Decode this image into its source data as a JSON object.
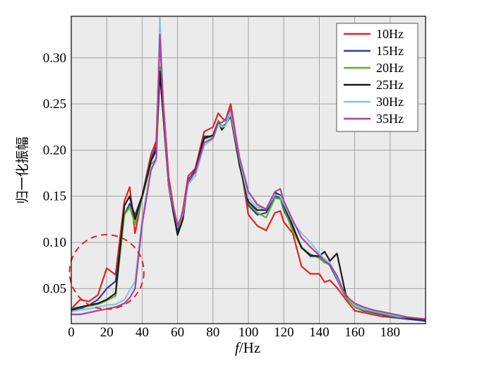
{
  "chart_data": {
    "type": "line",
    "xlabel_italic": "f",
    "xlabel_unit": "/Hz",
    "ylabel": "归一化振幅",
    "xlim": [
      0,
      200
    ],
    "ylim": [
      0.012,
      0.345
    ],
    "xticks": [
      0,
      20,
      40,
      60,
      80,
      100,
      120,
      140,
      160,
      180
    ],
    "yticks": [
      0.05,
      0.1,
      0.15,
      0.2,
      0.25,
      0.3
    ],
    "ytick_labels": [
      "0.05",
      "0.10",
      "0.15",
      "0.20",
      "0.25",
      "0.30"
    ],
    "grid": true,
    "legend_position": "top-right",
    "x": [
      0,
      5,
      10,
      15,
      20,
      25,
      30,
      33,
      36,
      40,
      45,
      48,
      50,
      52,
      55,
      60,
      63,
      66,
      70,
      75,
      80,
      83,
      85,
      87,
      90,
      95,
      100,
      105,
      110,
      115,
      118,
      120,
      125,
      130,
      135,
      140,
      143,
      146,
      150,
      155,
      160,
      165,
      170,
      175,
      180,
      185,
      190,
      195,
      200
    ],
    "series": [
      {
        "name": "10Hz",
        "color": "#e8211f",
        "values": [
          0.028,
          0.038,
          0.036,
          0.043,
          0.072,
          0.065,
          0.145,
          0.16,
          0.11,
          0.15,
          0.195,
          0.21,
          0.325,
          0.25,
          0.17,
          0.112,
          0.135,
          0.172,
          0.18,
          0.22,
          0.225,
          0.24,
          0.235,
          0.232,
          0.25,
          0.19,
          0.13,
          0.118,
          0.113,
          0.132,
          0.134,
          0.122,
          0.11,
          0.074,
          0.066,
          0.066,
          0.057,
          0.059,
          0.051,
          0.038,
          0.026,
          0.024,
          0.022,
          0.02,
          0.019,
          0.018,
          0.017,
          0.016,
          0.015
        ]
      },
      {
        "name": "15Hz",
        "color": "#2d3e9f",
        "values": [
          0.026,
          0.028,
          0.032,
          0.038,
          0.05,
          0.058,
          0.13,
          0.142,
          0.13,
          0.15,
          0.19,
          0.205,
          0.29,
          0.24,
          0.165,
          0.112,
          0.128,
          0.168,
          0.178,
          0.215,
          0.215,
          0.232,
          0.225,
          0.228,
          0.24,
          0.185,
          0.14,
          0.13,
          0.132,
          0.15,
          0.148,
          0.135,
          0.115,
          0.095,
          0.085,
          0.085,
          0.08,
          0.075,
          0.06,
          0.04,
          0.03,
          0.026,
          0.024,
          0.022,
          0.02,
          0.018,
          0.017,
          0.016,
          0.015
        ]
      },
      {
        "name": "20Hz",
        "color": "#5ab22c",
        "values": [
          0.028,
          0.03,
          0.031,
          0.033,
          0.037,
          0.042,
          0.13,
          0.138,
          0.12,
          0.148,
          0.185,
          0.19,
          0.29,
          0.238,
          0.163,
          0.116,
          0.126,
          0.165,
          0.176,
          0.212,
          0.215,
          0.232,
          0.226,
          0.228,
          0.238,
          0.183,
          0.143,
          0.132,
          0.127,
          0.148,
          0.147,
          0.138,
          0.112,
          0.095,
          0.087,
          0.083,
          0.078,
          0.076,
          0.062,
          0.04,
          0.03,
          0.027,
          0.025,
          0.023,
          0.021,
          0.019,
          0.018,
          0.017,
          0.016
        ]
      },
      {
        "name": "25Hz",
        "color": "#1a1a1a",
        "values": [
          0.027,
          0.03,
          0.032,
          0.034,
          0.038,
          0.045,
          0.14,
          0.15,
          0.125,
          0.15,
          0.188,
          0.2,
          0.285,
          0.235,
          0.16,
          0.108,
          0.125,
          0.166,
          0.177,
          0.213,
          0.216,
          0.23,
          0.222,
          0.227,
          0.237,
          0.184,
          0.144,
          0.135,
          0.135,
          0.154,
          0.151,
          0.14,
          0.118,
          0.094,
          0.086,
          0.085,
          0.09,
          0.08,
          0.088,
          0.043,
          0.032,
          0.028,
          0.026,
          0.024,
          0.022,
          0.02,
          0.018,
          0.017,
          0.016
        ]
      },
      {
        "name": "30Hz",
        "color": "#7fc9e6",
        "values": [
          0.025,
          0.027,
          0.028,
          0.03,
          0.032,
          0.033,
          0.038,
          0.048,
          0.058,
          0.125,
          0.18,
          0.188,
          0.345,
          0.245,
          0.16,
          0.118,
          0.13,
          0.163,
          0.172,
          0.205,
          0.212,
          0.228,
          0.225,
          0.226,
          0.24,
          0.19,
          0.148,
          0.138,
          0.136,
          0.152,
          0.15,
          0.142,
          0.122,
          0.11,
          0.1,
          0.088,
          0.082,
          0.078,
          0.062,
          0.042,
          0.032,
          0.028,
          0.026,
          0.024,
          0.022,
          0.02,
          0.019,
          0.018,
          0.017
        ]
      },
      {
        "name": "35Hz",
        "color": "#b03fa0",
        "values": [
          0.022,
          0.022,
          0.024,
          0.026,
          0.028,
          0.03,
          0.034,
          0.04,
          0.05,
          0.12,
          0.178,
          0.192,
          0.325,
          0.244,
          0.162,
          0.118,
          0.132,
          0.167,
          0.176,
          0.208,
          0.213,
          0.23,
          0.23,
          0.233,
          0.245,
          0.192,
          0.155,
          0.141,
          0.136,
          0.155,
          0.158,
          0.145,
          0.124,
          0.105,
          0.095,
          0.086,
          0.08,
          0.076,
          0.064,
          0.042,
          0.034,
          0.03,
          0.027,
          0.025,
          0.023,
          0.021,
          0.019,
          0.018,
          0.017
        ]
      }
    ],
    "annotation": {
      "shape": "dashed-circle",
      "color": "#e8211f",
      "center": [
        20,
        0.068
      ],
      "radius_x_units": 21
    }
  }
}
